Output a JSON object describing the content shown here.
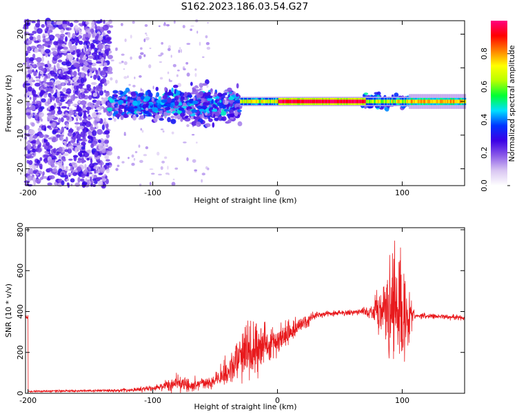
{
  "title": "S162.2023.186.03.54.G27",
  "chart_data": [
    {
      "type": "heatmap",
      "xlabel": "Height of straight line (km)",
      "ylabel": "Frequency (Hz)",
      "xlim": [
        -202,
        150
      ],
      "ylim": [
        -25,
        24
      ],
      "xticks": [
        -200,
        -100,
        0,
        100
      ],
      "yticks": [
        -20,
        -10,
        0,
        10,
        20
      ],
      "colorbar": {
        "label": "Normalized spectral amplitude",
        "range": [
          0,
          1
        ],
        "ticks": [
          "0.0",
          "0.2",
          "0.4",
          "0.6",
          "0.8"
        ],
        "colormap": [
          "#ffffff",
          "#d9c6f2",
          "#8c5be8",
          "#3c00e6",
          "#0033ff",
          "#00e0ff",
          "#00ff33",
          "#b8ff00",
          "#ffff00",
          "#ff8000",
          "#ff0000",
          "#ff0080"
        ]
      },
      "features": [
        {
          "x_range": [
            -200,
            -135
          ],
          "freq_range": [
            -24,
            24
          ],
          "amplitude": "0.1-0.3",
          "pattern": "scattered noise"
        },
        {
          "x_range": [
            -135,
            -30
          ],
          "freq_range": [
            -12,
            8
          ],
          "amplitude": "0.2-0.4",
          "pattern": "broad diffuse band"
        },
        {
          "x_range": [
            -30,
            105
          ],
          "freq_range": [
            -1,
            1
          ],
          "amplitude": "0.6-1.0",
          "pattern": "narrow tone near 0 Hz"
        },
        {
          "x_range": [
            70,
            105
          ],
          "freq_range": [
            -4,
            4
          ],
          "amplitude": "0.3-0.5",
          "pattern": "broadening"
        },
        {
          "x_range": [
            105,
            150
          ],
          "freq_range": [
            -2,
            2
          ],
          "amplitude": "0.5-0.9",
          "pattern": "narrow tone near 0 Hz"
        }
      ]
    },
    {
      "type": "line",
      "xlabel": "Height of straight line (km)",
      "ylabel": "SNR (10 * v/v)",
      "xlim": [
        -202,
        150
      ],
      "ylim": [
        0,
        810
      ],
      "xticks": [
        -200,
        -100,
        0,
        100
      ],
      "yticks": [
        0,
        200,
        400,
        600,
        800
      ],
      "series": [
        {
          "color": "#e8191c",
          "envelope": [
            {
              "x": -200,
              "mean": 10,
              "noise": 6
            },
            {
              "x": -150,
              "mean": 12,
              "noise": 7
            },
            {
              "x": -120,
              "mean": 15,
              "noise": 10
            },
            {
              "x": -100,
              "mean": 25,
              "noise": 15
            },
            {
              "x": -90,
              "mean": 35,
              "noise": 25
            },
            {
              "x": -80,
              "mean": 60,
              "noise": 60
            },
            {
              "x": -70,
              "mean": 40,
              "noise": 30
            },
            {
              "x": -50,
              "mean": 60,
              "noise": 30
            },
            {
              "x": -40,
              "mean": 110,
              "noise": 90
            },
            {
              "x": -30,
              "mean": 170,
              "noise": 150
            },
            {
              "x": -20,
              "mean": 210,
              "noise": 140
            },
            {
              "x": -10,
              "mean": 240,
              "noise": 100
            },
            {
              "x": 0,
              "mean": 260,
              "noise": 80
            },
            {
              "x": 10,
              "mean": 300,
              "noise": 60
            },
            {
              "x": 20,
              "mean": 340,
              "noise": 40
            },
            {
              "x": 30,
              "mean": 380,
              "noise": 20
            },
            {
              "x": 40,
              "mean": 390,
              "noise": 15
            },
            {
              "x": 60,
              "mean": 395,
              "noise": 15
            },
            {
              "x": 75,
              "mean": 400,
              "noise": 30
            },
            {
              "x": 80,
              "mean": 410,
              "noise": 140
            },
            {
              "x": 90,
              "mean": 430,
              "noise": 250
            },
            {
              "x": 98,
              "mean": 430,
              "noise": 380
            },
            {
              "x": 105,
              "mean": 390,
              "noise": 150
            },
            {
              "x": 110,
              "mean": 380,
              "noise": 15
            },
            {
              "x": 150,
              "mean": 370,
              "noise": 12
            }
          ]
        }
      ]
    }
  ]
}
